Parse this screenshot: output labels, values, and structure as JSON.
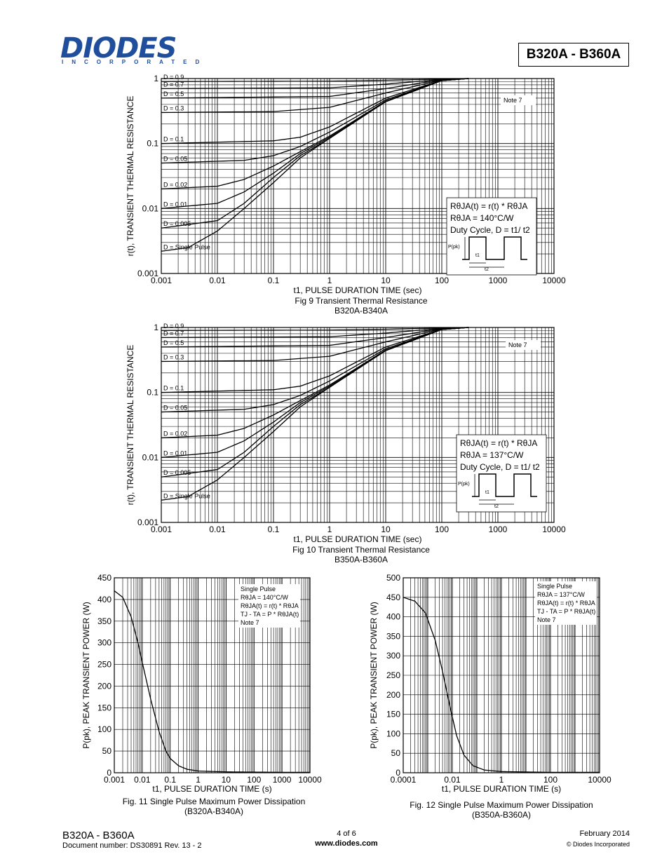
{
  "header": {
    "logo_text": "DIODES",
    "logo_sub": "INCORPORATED",
    "part_title": "B320A - B360A"
  },
  "figures": {
    "fig9": {
      "caption": "Fig 9 Transient Thermal Resistance",
      "subcaption": "B320A-B340A",
      "xlabel": "t1, PULSE DURATION TIME (sec)",
      "ylabel": "r(t), TRANSIENT THERMAL RESISTANCE",
      "note": "Note 7",
      "box_lines": [
        "RθJA(t) = r(t) * RθJA",
        "RθJA = 140°C/W",
        "Duty Cycle, D = t1/ t2"
      ],
      "pulse_labels": [
        "P(pk)",
        "t1",
        "t2"
      ]
    },
    "fig10": {
      "caption": "Fig 10 Transient Thermal Resistance",
      "subcaption": "B350A-B360A",
      "xlabel": "t1, PULSE DURATION TIME (sec)",
      "ylabel": "r(t), TRANSIENT THERMAL RESISTANCE",
      "note": "Note 7",
      "box_lines": [
        "RθJA(t) = r(t) * RθJA",
        "RθJA = 137°C/W",
        "Duty Cycle, D = t1/ t2"
      ],
      "pulse_labels": [
        "P(pk)",
        "t1",
        "t2"
      ]
    },
    "fig11": {
      "caption": "Fig. 11 Single Pulse Maximum Power Dissipation",
      "subcaption": "(B320A-B340A)",
      "xlabel": "t1, PULSE DURATION TIME (s)",
      "ylabel": "P(pk), PEAK TRANSIENT  POWER (W)",
      "box_lines": [
        "Single Pulse",
        "RθJA = 140°C/W",
        "RθJA(t) = r(t) * RθJA",
        "TJ - TA = P * RθJA(t)",
        "Note 7"
      ]
    },
    "fig12": {
      "caption": "Fig. 12 Single Pulse Maximum Power Dissipation",
      "subcaption": "(B350A-B360A)",
      "xlabel": "t1, PULSE DURATION TIME (s)",
      "ylabel": "P(pk), PEAK TRANSIENT  POWER (W)",
      "box_lines": [
        "Single Pulse",
        "RθJA = 137°C/W",
        "RθJA(t) = r(t) * RθJA",
        "TJ - TA = P * RθJA(t)",
        "Note 7"
      ]
    }
  },
  "chart_data": [
    {
      "id": "fig9",
      "type": "line",
      "title": "Fig 9 Transient Thermal Resistance",
      "xlabel": "t1, PULSE DURATION TIME (sec)",
      "ylabel": "r(t), TRANSIENT THERMAL RESISTANCE",
      "xscale": "log",
      "yscale": "log",
      "xlim": [
        0.001,
        10000
      ],
      "ylim": [
        0.001,
        1
      ],
      "xticks": [
        "0.001",
        "0.01",
        "0.1",
        "1",
        "10",
        "100",
        "1000",
        "10000"
      ],
      "yticks": [
        "0.001",
        "0.01",
        "0.1",
        "1"
      ],
      "grid": true,
      "series": [
        {
          "name": "D = 0.9",
          "points": [
            [
              0.001,
              0.9
            ],
            [
              1,
              0.91
            ],
            [
              10,
              0.94
            ],
            [
              100,
              0.98
            ],
            [
              300,
              1
            ]
          ]
        },
        {
          "name": "D = 0.7",
          "points": [
            [
              0.001,
              0.7
            ],
            [
              1,
              0.72
            ],
            [
              10,
              0.82
            ],
            [
              100,
              0.97
            ],
            [
              300,
              1
            ]
          ]
        },
        {
          "name": "D = 0.5",
          "points": [
            [
              0.001,
              0.5
            ],
            [
              1,
              0.53
            ],
            [
              10,
              0.7
            ],
            [
              100,
              0.96
            ],
            [
              300,
              1
            ]
          ]
        },
        {
          "name": "D = 0.3",
          "points": [
            [
              0.001,
              0.3
            ],
            [
              0.1,
              0.31
            ],
            [
              1,
              0.36
            ],
            [
              10,
              0.6
            ],
            [
              100,
              0.95
            ],
            [
              300,
              1
            ]
          ]
        },
        {
          "name": "D = 0.1",
          "points": [
            [
              0.001,
              0.1
            ],
            [
              0.1,
              0.11
            ],
            [
              0.3,
              0.125
            ],
            [
              1,
              0.18
            ],
            [
              10,
              0.5
            ],
            [
              100,
              0.94
            ],
            [
              300,
              1
            ]
          ]
        },
        {
          "name": "D = 0.05",
          "points": [
            [
              0.001,
              0.05
            ],
            [
              0.03,
              0.055
            ],
            [
              0.1,
              0.065
            ],
            [
              0.3,
              0.09
            ],
            [
              1,
              0.15
            ],
            [
              10,
              0.47
            ],
            [
              100,
              0.93
            ],
            [
              300,
              1
            ]
          ]
        },
        {
          "name": "D = 0.02",
          "points": [
            [
              0.001,
              0.02
            ],
            [
              0.01,
              0.022
            ],
            [
              0.03,
              0.028
            ],
            [
              0.1,
              0.045
            ],
            [
              0.3,
              0.075
            ],
            [
              1,
              0.13
            ],
            [
              10,
              0.45
            ],
            [
              100,
              0.93
            ],
            [
              300,
              1
            ]
          ]
        },
        {
          "name": "D = 0.01",
          "points": [
            [
              0.001,
              0.01
            ],
            [
              0.01,
              0.012
            ],
            [
              0.03,
              0.018
            ],
            [
              0.1,
              0.035
            ],
            [
              0.3,
              0.07
            ],
            [
              1,
              0.125
            ],
            [
              10,
              0.44
            ],
            [
              100,
              0.93
            ],
            [
              300,
              1
            ]
          ]
        },
        {
          "name": "D = 0.005",
          "points": [
            [
              0.001,
              0.005
            ],
            [
              0.01,
              0.0065
            ],
            [
              0.03,
              0.012
            ],
            [
              0.1,
              0.03
            ],
            [
              0.3,
              0.065
            ],
            [
              1,
              0.12
            ],
            [
              10,
              0.44
            ],
            [
              100,
              0.93
            ],
            [
              300,
              1
            ]
          ]
        },
        {
          "name": "D = Single Pulse",
          "points": [
            [
              0.001,
              0.0022
            ],
            [
              0.003,
              0.0025
            ],
            [
              0.01,
              0.0045
            ],
            [
              0.03,
              0.01
            ],
            [
              0.1,
              0.025
            ],
            [
              0.3,
              0.06
            ],
            [
              1,
              0.12
            ],
            [
              10,
              0.44
            ],
            [
              100,
              0.93
            ],
            [
              300,
              1
            ]
          ]
        }
      ]
    },
    {
      "id": "fig10",
      "type": "line",
      "title": "Fig 10 Transient Thermal Resistance",
      "xlabel": "t1, PULSE DURATION TIME (sec)",
      "ylabel": "r(t), TRANSIENT THERMAL RESISTANCE",
      "xscale": "log",
      "yscale": "log",
      "xlim": [
        0.001,
        10000
      ],
      "ylim": [
        0.001,
        1
      ],
      "xticks": [
        "0.001",
        "0.01",
        "0.1",
        "1",
        "10",
        "100",
        "1000",
        "10000"
      ],
      "yticks": [
        "0.001",
        "0.01",
        "0.1",
        "1"
      ],
      "grid": true,
      "series": [
        {
          "name": "D = 0.9",
          "points": [
            [
              0.001,
              0.9
            ],
            [
              1,
              0.91
            ],
            [
              10,
              0.94
            ],
            [
              100,
              0.98
            ],
            [
              300,
              1
            ]
          ]
        },
        {
          "name": "D = 0.7",
          "points": [
            [
              0.001,
              0.7
            ],
            [
              1,
              0.72
            ],
            [
              10,
              0.82
            ],
            [
              100,
              0.97
            ],
            [
              300,
              1
            ]
          ]
        },
        {
          "name": "D = 0.5",
          "points": [
            [
              0.001,
              0.5
            ],
            [
              1,
              0.53
            ],
            [
              10,
              0.7
            ],
            [
              100,
              0.96
            ],
            [
              300,
              1
            ]
          ]
        },
        {
          "name": "D = 0.3",
          "points": [
            [
              0.001,
              0.3
            ],
            [
              0.1,
              0.31
            ],
            [
              1,
              0.36
            ],
            [
              10,
              0.6
            ],
            [
              100,
              0.95
            ],
            [
              300,
              1
            ]
          ]
        },
        {
          "name": "D = 0.1",
          "points": [
            [
              0.001,
              0.1
            ],
            [
              0.1,
              0.11
            ],
            [
              0.3,
              0.125
            ],
            [
              1,
              0.18
            ],
            [
              10,
              0.5
            ],
            [
              100,
              0.94
            ],
            [
              300,
              1
            ]
          ]
        },
        {
          "name": "D = 0.05",
          "points": [
            [
              0.001,
              0.05
            ],
            [
              0.03,
              0.055
            ],
            [
              0.1,
              0.065
            ],
            [
              0.3,
              0.09
            ],
            [
              1,
              0.15
            ],
            [
              10,
              0.47
            ],
            [
              100,
              0.93
            ],
            [
              300,
              1
            ]
          ]
        },
        {
          "name": "D = 0.02",
          "points": [
            [
              0.001,
              0.02
            ],
            [
              0.01,
              0.022
            ],
            [
              0.03,
              0.028
            ],
            [
              0.1,
              0.045
            ],
            [
              0.3,
              0.075
            ],
            [
              1,
              0.13
            ],
            [
              10,
              0.45
            ],
            [
              100,
              0.93
            ],
            [
              300,
              1
            ]
          ]
        },
        {
          "name": "D = 0.01",
          "points": [
            [
              0.001,
              0.01
            ],
            [
              0.01,
              0.012
            ],
            [
              0.03,
              0.018
            ],
            [
              0.1,
              0.035
            ],
            [
              0.3,
              0.07
            ],
            [
              1,
              0.125
            ],
            [
              10,
              0.44
            ],
            [
              100,
              0.93
            ],
            [
              300,
              1
            ]
          ]
        },
        {
          "name": "D = 0.005",
          "points": [
            [
              0.001,
              0.005
            ],
            [
              0.01,
              0.0065
            ],
            [
              0.03,
              0.012
            ],
            [
              0.1,
              0.03
            ],
            [
              0.3,
              0.065
            ],
            [
              1,
              0.12
            ],
            [
              10,
              0.44
            ],
            [
              100,
              0.93
            ],
            [
              300,
              1
            ]
          ]
        },
        {
          "name": "D = Single Pulse",
          "points": [
            [
              0.001,
              0.0022
            ],
            [
              0.003,
              0.0025
            ],
            [
              0.01,
              0.0045
            ],
            [
              0.03,
              0.01
            ],
            [
              0.1,
              0.025
            ],
            [
              0.3,
              0.06
            ],
            [
              1,
              0.12
            ],
            [
              10,
              0.44
            ],
            [
              100,
              0.93
            ],
            [
              300,
              1
            ]
          ]
        }
      ]
    },
    {
      "id": "fig11",
      "type": "line",
      "title": "Fig. 11 Single Pulse Maximum Power Dissipation",
      "xlabel": "t1, PULSE DURATION TIME (s)",
      "ylabel": "P(pk), PEAK TRANSIENT  POWER (W)",
      "xscale": "log",
      "yscale": "linear",
      "xlim": [
        0.001,
        10000
      ],
      "ylim": [
        0,
        450
      ],
      "xticks": [
        "0.001",
        "0.01",
        "0.1",
        "1",
        "10",
        "100",
        "1000",
        "10000"
      ],
      "yticks": [
        "0",
        "50",
        "100",
        "150",
        "200",
        "250",
        "300",
        "350",
        "400",
        "450"
      ],
      "grid": true,
      "series": [
        {
          "points": [
            [
              0.001,
              420
            ],
            [
              0.002,
              405
            ],
            [
              0.004,
              360
            ],
            [
              0.007,
              300
            ],
            [
              0.01,
              255
            ],
            [
              0.02,
              170
            ],
            [
              0.04,
              95
            ],
            [
              0.07,
              50
            ],
            [
              0.1,
              33
            ],
            [
              0.2,
              16
            ],
            [
              0.4,
              8
            ],
            [
              1,
              4
            ],
            [
              10,
              2
            ],
            [
              100,
              1.5
            ],
            [
              1000,
              1
            ],
            [
              10000,
              1
            ]
          ]
        }
      ]
    },
    {
      "id": "fig12",
      "type": "line",
      "title": "Fig. 12 Single Pulse Maximum Power Dissipation",
      "xlabel": "t1, PULSE DURATION TIME (s)",
      "ylabel": "P(pk), PEAK TRANSIENT  POWER (W)",
      "xscale": "log",
      "yscale": "linear",
      "xlim": [
        0.0001,
        10000
      ],
      "ylim": [
        0,
        500
      ],
      "xticks": [
        "0.0001",
        "0.01",
        "1",
        "100",
        "10000"
      ],
      "yticks": [
        "0",
        "50",
        "100",
        "150",
        "200",
        "250",
        "300",
        "350",
        "400",
        "450",
        "500"
      ],
      "grid": true,
      "series": [
        {
          "points": [
            [
              0.0001,
              450
            ],
            [
              0.0003,
              440
            ],
            [
              0.0008,
              410
            ],
            [
              0.002,
              340
            ],
            [
              0.004,
              260
            ],
            [
              0.008,
              170
            ],
            [
              0.015,
              95
            ],
            [
              0.03,
              45
            ],
            [
              0.07,
              18
            ],
            [
              0.2,
              7
            ],
            [
              1,
              3
            ],
            [
              10,
              2
            ],
            [
              100,
              1
            ],
            [
              10000,
              1
            ]
          ]
        }
      ]
    }
  ],
  "footer": {
    "left_title": "B320A - B360A",
    "doc_number": "Document number: DS30891 Rev. 13 - 2",
    "page": "4 of 6",
    "website": "www.diodes.com",
    "date": "February 2014",
    "copyright": "© Diodes Incorporated"
  }
}
